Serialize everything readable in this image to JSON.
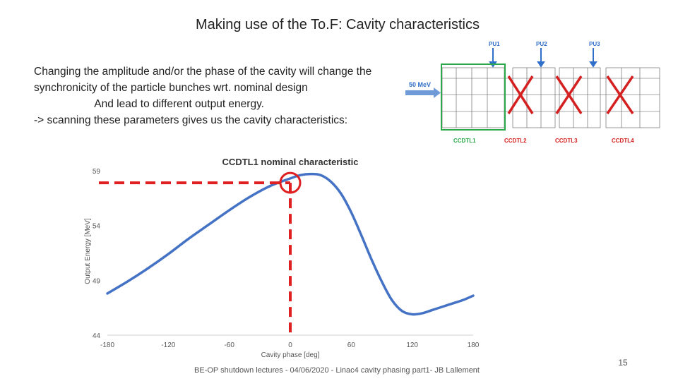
{
  "slide": {
    "title": "Making use of the To.F: Cavity characteristics",
    "body": "Changing the amplitude and/or the phase of the cavity will change the\nsynchronicity of the particle bunches wrt. nominal design\n                    And lead to different output energy.\n-> scanning these parameters gives us the cavity characteristics:",
    "footer": "BE-OP shutdown lectures - 04/06/2020 - Linac4  cavity phasing part1- JB Lallement",
    "page_number": "15"
  },
  "diagram": {
    "input_label": "50 MeV",
    "pickups": [
      "PU1",
      "PU2",
      "PU3"
    ],
    "cavities": [
      "CCDTL1",
      "CCDTL2",
      "CCDTL3",
      "CCDTL4"
    ],
    "colors": {
      "pickup": "#2f6fc9",
      "active": "#2aa84a",
      "disabled": "#d42020",
      "arrow": "#3a7bd5"
    }
  },
  "chart_data": {
    "type": "line",
    "title": "CCDTL1 nominal characteristic",
    "xlabel": "Cavity phase [deg]",
    "ylabel": "Output Energy [MeV]",
    "xlim": [
      -180,
      180
    ],
    "ylim": [
      44,
      59
    ],
    "xticks": [
      -180,
      -120,
      -60,
      0,
      60,
      120,
      180
    ],
    "yticks": [
      44,
      49,
      54,
      59
    ],
    "x_tick_labels": [
      "-180",
      "-120",
      "-60",
      "0",
      "60",
      "120",
      "180"
    ],
    "y_tick_labels": [
      "44",
      "49",
      "54",
      "59"
    ],
    "grid": false,
    "series": [
      {
        "color": "#4472c4",
        "x": [
          -180,
          -160,
          -140,
          -120,
          -100,
          -80,
          -60,
          -40,
          -20,
          0,
          10,
          20,
          30,
          40,
          50,
          60,
          70,
          80,
          90,
          100,
          110,
          120,
          130,
          140,
          150,
          160,
          170,
          180
        ],
        "y": [
          47.8,
          48.9,
          50.1,
          51.4,
          52.8,
          54.1,
          55.4,
          56.6,
          57.6,
          58.3,
          58.6,
          58.7,
          58.6,
          58.0,
          56.9,
          55.2,
          53.1,
          50.9,
          48.9,
          47.2,
          46.2,
          45.9,
          46.0,
          46.3,
          46.6,
          46.9,
          47.2,
          47.6
        ]
      }
    ],
    "annotations": [
      {
        "type": "hline",
        "y": 57.9,
        "x_from": -180,
        "x_to": 0,
        "style": "dashed",
        "color": "#e02020"
      },
      {
        "type": "vline",
        "x": 0,
        "y_from": 44,
        "y_to": 57.9,
        "style": "dashed",
        "color": "#e02020"
      },
      {
        "type": "circle",
        "x": 0,
        "y": 57.9,
        "color": "#e02020"
      }
    ]
  }
}
